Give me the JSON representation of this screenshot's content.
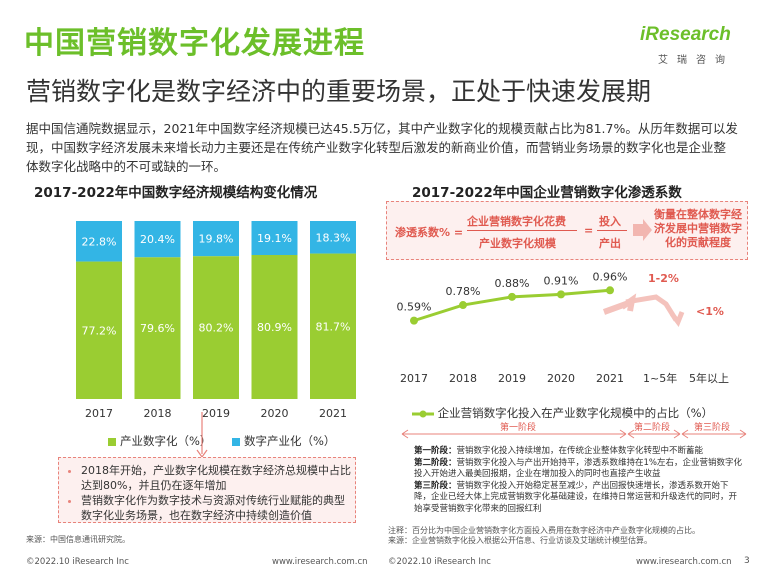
{
  "header": {
    "title": "中国营销数字化发展进程",
    "subtitle": "营销数字化是数字经济中的重要场景，正处于快速发展期",
    "logo_main": "iResearch",
    "logo_sub": "艾瑞咨询"
  },
  "description": "据中国信通院数据显示，2021年中国数字经济规模已达45.5万亿，其中产业数字化的规模贡献占比为81.7%。从历年数据可以发现，中国数字经济发展未来增长动力主要还是在传统产业数字化转型后激发的新商业价值，而营销业务场景的数字化也是企业整体数字化战略中的不可或缺的一环。",
  "left_chart": {
    "title": "2017-2022年中国数字经济规模结构变化情况",
    "notes": [
      "2018年开始，产业数字化规模在数字经济总规模中占比达到80%，并且仍在逐年增加",
      "营销数字化作为数字技术与资源对传统行业赋能的典型数字化业务场景，也在数字经济中持续创造价值"
    ],
    "source": "来源：中国信息通讯研究院。"
  },
  "right_chart": {
    "title": "2017-2022年中国企业营销数字化渗透系数",
    "formula": {
      "lhs": "渗透系数% =",
      "numerator": "企业营销数字化花费",
      "denominator": "产业数字化规模",
      "mid_numerator": "投入",
      "mid_denominator": "产出",
      "result": "衡量在整体数字经济发展中营销数字化的贡献程度"
    },
    "forecast_labels": [
      "1-2%",
      "<1%"
    ],
    "forecast_periods": [
      "1~5年",
      "5年以上"
    ],
    "stages": [
      "第一阶段",
      "第二阶段",
      "第三阶段"
    ],
    "stage_descriptions": [
      {
        "name": "第一阶段：",
        "text": "营销数字化投入持续增加，在传统企业整体数字化转型中不断蓄能"
      },
      {
        "name": "第二阶段：",
        "text": "营销数字化投入与产出开始持平，渗透系数维持在1%左右，企业营销数字化投入开始进入最美回报期，企业在增加投入的同时也直接产生收益"
      },
      {
        "name": "第三阶段：",
        "text": "营销数字化投入开始稳定甚至减少，产出回报快速增长，渗透系数开始下降，企业已经大体上完成营销数字化基础建设，在维持日常运营和升级迭代的同时，开始享受营销数字化带来的回报红利"
      }
    ],
    "footnote_1": "注释：百分比为中国企业营销数字化方面投入费用在数字经济中产业数字化规模的占比。",
    "footnote_2": "来源：企业营销数字化投入根据公开信息、行业访谈及艾瑞统计模型估算。"
  },
  "footer": {
    "left_copyright": "©2022.10 iResearch Inc",
    "left_url": "www.iresearch.com.cn",
    "right_copyright": "©2022.10 iResearch Inc",
    "right_url": "www.iresearch.com.cn",
    "page": "3"
  },
  "colors": {
    "green": "#9acd32",
    "blue": "#33b5e5",
    "accent_red": "#e05a50",
    "title_green": "#6cbf2a"
  },
  "chart_data": [
    {
      "type": "bar",
      "stacked": true,
      "title": "2017-2022年中国数字经济规模结构变化情况",
      "categories": [
        "2017",
        "2018",
        "2019",
        "2020",
        "2021"
      ],
      "series": [
        {
          "name": "产业数字化（%）",
          "color": "#9acd32",
          "values": [
            77.2,
            79.6,
            80.2,
            80.9,
            81.7
          ]
        },
        {
          "name": "数字产业化（%）",
          "color": "#33b5e5",
          "values": [
            22.8,
            20.4,
            19.8,
            19.1,
            18.3
          ]
        }
      ],
      "ylim": [
        0,
        100
      ],
      "legend": "bottom"
    },
    {
      "type": "line",
      "title": "2017-2022年中国企业营销数字化渗透系数",
      "categories": [
        "2017",
        "2018",
        "2019",
        "2020",
        "2021"
      ],
      "series": [
        {
          "name": "企业营销数字化投入在产业数字化规模中的占比（%）",
          "color": "#9acd32",
          "values": [
            0.59,
            0.78,
            0.88,
            0.91,
            0.96
          ]
        }
      ],
      "legend": "bottom"
    }
  ]
}
